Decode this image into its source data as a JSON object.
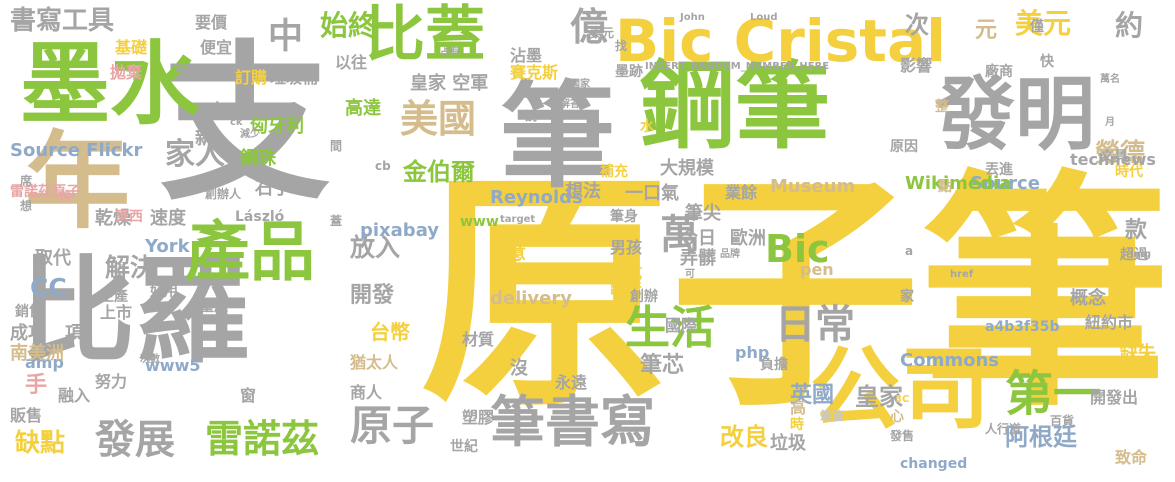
{
  "palette": {
    "yellow": "#F4D03F",
    "green": "#8CC63F",
    "gray": "#A5A5A5",
    "tan": "#D4BC8C",
    "blue": "#8FA9C8",
    "pink": "#E8A6A6",
    "orange": "#F0A050",
    "lightgray": "#C8C8C8"
  },
  "words": [
    {
      "text": "原子筆"
    },
    {
      "text": "支"
    },
    {
      "text": "鋼筆"
    },
    {
      "text": "墨水"
    },
    {
      "text": "比羅"
    },
    {
      "text": "發明"
    },
    {
      "text": "筆"
    },
    {
      "text": "年"
    },
    {
      "text": "公司"
    },
    {
      "text": "產品"
    },
    {
      "text": "比蓋"
    },
    {
      "text": "Bic Cristal"
    },
    {
      "text": "筆書寫"
    },
    {
      "text": "原子"
    },
    {
      "text": "發展"
    },
    {
      "text": "雷諾茲"
    },
    {
      "text": "生活"
    },
    {
      "text": "日常"
    },
    {
      "text": "第一"
    },
    {
      "text": "美國"
    },
    {
      "text": "億"
    },
    {
      "text": "中"
    },
    {
      "text": "始終"
    },
    {
      "text": "書寫工具"
    },
    {
      "text": "家人"
    },
    {
      "text": "金伯爾"
    },
    {
      "text": "萬"
    },
    {
      "text": "Bic"
    },
    {
      "text": "放入"
    },
    {
      "text": "解決"
    },
    {
      "text": "開發"
    },
    {
      "text": "CC"
    },
    {
      "text": "改良"
    },
    {
      "text": "阿根廷"
    },
    {
      "text": "勞德"
    },
    {
      "text": "英國"
    },
    {
      "text": "皇家"
    },
    {
      "text": "缺點"
    },
    {
      "text": "筆芯"
    },
    {
      "text": "美元"
    },
    {
      "text": "約"
    },
    {
      "text": "次"
    },
    {
      "text": "元"
    },
    {
      "text": "款"
    },
    {
      "text": "手"
    },
    {
      "text": "台幣"
    },
    {
      "text": "Source Flickr"
    },
    {
      "text": "Source"
    },
    {
      "text": "Wikimedia"
    },
    {
      "text": "Commons"
    },
    {
      "text": "technews"
    },
    {
      "text": "鋼珠"
    },
    {
      "text": "皇家 空軍"
    },
    {
      "text": "匈牙利"
    },
    {
      "text": "László"
    },
    {
      "text": "石子"
    },
    {
      "text": "高達"
    },
    {
      "text": "乾燥"
    },
    {
      "text": "速度"
    },
    {
      "text": "取代"
    },
    {
      "text": "York"
    },
    {
      "text": "pixabay"
    },
    {
      "text": "Reynolds"
    },
    {
      "text": "Museum"
    },
    {
      "text": "大規模"
    },
    {
      "text": "業餘"
    },
    {
      "text": "一口氣"
    },
    {
      "text": "想法"
    },
    {
      "text": "筆尖"
    },
    {
      "text": "今日"
    },
    {
      "text": "歐洲"
    },
    {
      "text": "男孩"
    },
    {
      "text": "弄髒"
    },
    {
      "text": "pen"
    },
    {
      "text": "delivery"
    },
    {
      "text": "生意"
    },
    {
      "text": "水坑"
    },
    {
      "text": "說法"
    },
    {
      "text": "創辦"
    },
    {
      "text": "國際"
    },
    {
      "text": "材質"
    },
    {
      "text": "php"
    },
    {
      "text": "www5"
    },
    {
      "text": "amp"
    },
    {
      "text": "努力"
    },
    {
      "text": "南美洲"
    },
    {
      "text": "成功"
    },
    {
      "text": "項"
    },
    {
      "text": "上市"
    },
    {
      "text": "生產"
    },
    {
      "text": "銷售"
    },
    {
      "text": "販售"
    },
    {
      "text": "融入"
    },
    {
      "text": "窗"
    },
    {
      "text": "商人"
    },
    {
      "text": "猶太人"
    },
    {
      "text": "沒"
    },
    {
      "text": "永遠"
    },
    {
      "text": "塑膠"
    },
    {
      "text": "世紀"
    },
    {
      "text": "垃圾"
    },
    {
      "text": "高"
    },
    {
      "text": "時"
    },
    {
      "text": "筆管"
    },
    {
      "text": "負擔"
    },
    {
      "text": "心"
    },
    {
      "text": "發售"
    },
    {
      "text": "changed"
    },
    {
      "text": "人行道"
    },
    {
      "text": "致命"
    },
    {
      "text": "百貨"
    },
    {
      "text": "開發出"
    },
    {
      "text": "缺失"
    },
    {
      "text": "紐約市"
    },
    {
      "text": "概念"
    },
    {
      "text": "a4b3f35b"
    },
    {
      "text": "超過"
    },
    {
      "text": "家"
    },
    {
      "text": "www"
    },
    {
      "text": "東西"
    },
    {
      "text": "雷諾茲原子"
    },
    {
      "text": "新"
    },
    {
      "text": "以往"
    },
    {
      "text": "訂購"
    },
    {
      "text": "垃圾桶"
    },
    {
      "text": "便宜"
    },
    {
      "text": "要價"
    },
    {
      "text": "基礎"
    },
    {
      "text": "拋棄"
    },
    {
      "text": "沾墨"
    },
    {
      "text": "賽克斯"
    },
    {
      "text": "墨跡"
    },
    {
      "text": "影響"
    },
    {
      "text": "廠商"
    },
    {
      "text": "整"
    },
    {
      "text": "文具"
    },
    {
      "text": "時代"
    },
    {
      "text": "點"
    },
    {
      "text": "僅"
    },
    {
      "text": "快"
    },
    {
      "text": "原因"
    },
    {
      "text": "丟進"
    },
    {
      "text": "補充"
    },
    {
      "text": "水"
    },
    {
      "text": "筆身"
    },
    {
      "text": "量產"
    },
    {
      "text": "好用"
    },
    {
      "text": "創辦人"
    },
    {
      "text": "換"
    },
    {
      "text": "cb"
    },
    {
      "text": "間"
    },
    {
      "text": "說"
    },
    {
      "text": "找"
    },
    {
      "text": "tw"
    },
    {
      "text": "ck"
    },
    {
      "text": "減少"
    },
    {
      "text": "占有"
    },
    {
      "text": "美元 "
    },
    {
      "text": "INSERT_RANDOM_NUMBER_HERE"
    },
    {
      "text": "href"
    },
    {
      "text": "a"
    },
    {
      "text": "img"
    },
    {
      "text": "target"
    },
    {
      "text": "3C"
    },
    {
      "text": "John"
    },
    {
      "text": "Loud"
    },
    {
      "text": "寫字"
    },
    {
      "text": "月"
    },
    {
      "text": "萬名"
    },
    {
      "text": "蓋"
    },
    {
      "text": "想"
    },
    {
      "text": "席"
    },
    {
      "text": "次數"
    },
    {
      "text": "國家"
    },
    {
      "text": "解答"
    },
    {
      "text": "品牌"
    },
    {
      "text": "可"
    },
    {
      "text": "打開"
    }
  ]
}
